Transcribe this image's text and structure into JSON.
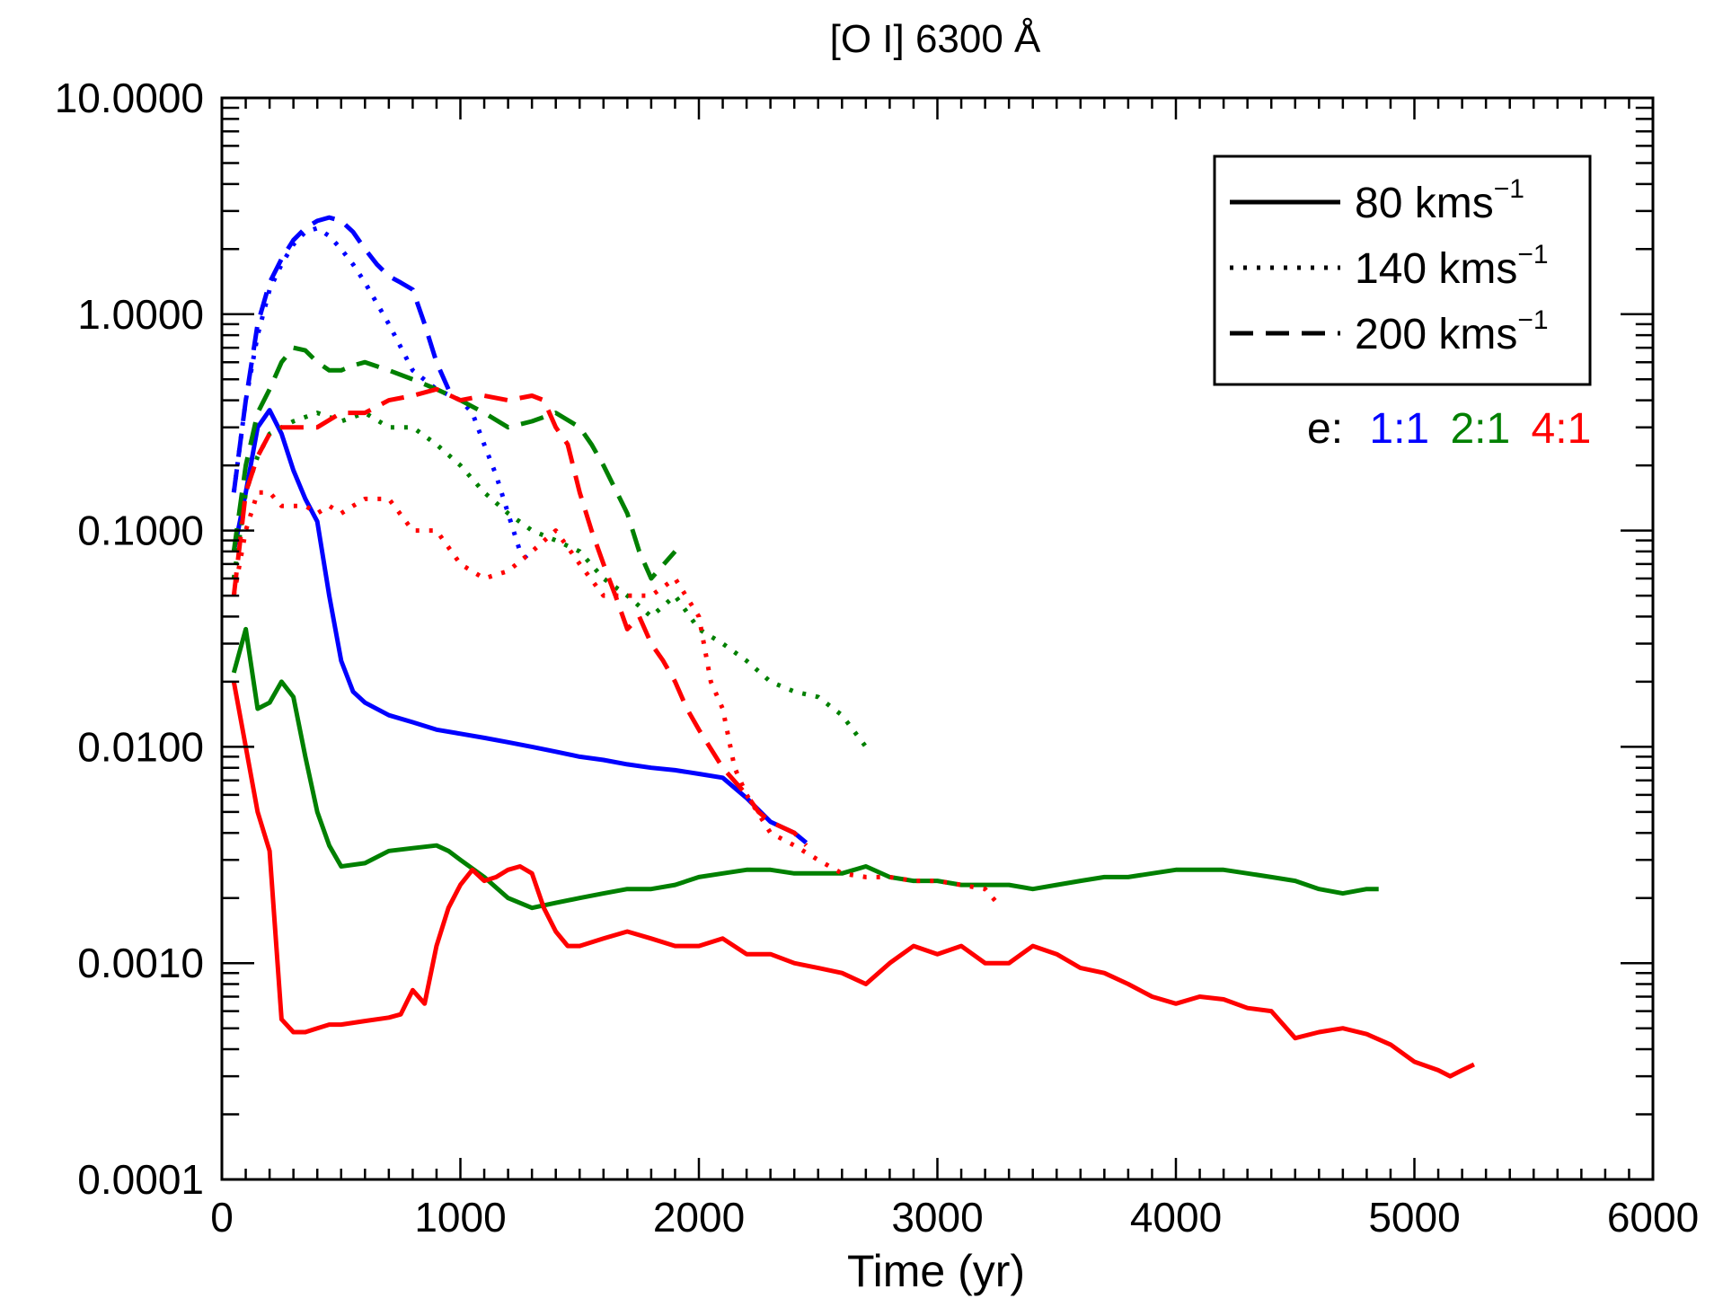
{
  "chart_data": {
    "type": "line",
    "title": "[O I] 6300 Å",
    "xlabel": "Time (yr)",
    "ylabel": "",
    "xlim": [
      0,
      6000
    ],
    "ylim": [
      0.0001,
      10
    ],
    "yscale": "log",
    "x_ticks": [
      0,
      1000,
      2000,
      3000,
      4000,
      5000,
      6000
    ],
    "x_tick_labels": [
      "0",
      "1000",
      "2000",
      "3000",
      "4000",
      "5000",
      "6000"
    ],
    "y_ticks": [
      0.0001,
      0.001,
      0.01,
      0.1,
      1,
      10
    ],
    "y_tick_labels": [
      "0.0001",
      "0.0010",
      "0.0100",
      "0.1000",
      "1.0000",
      "10.0000"
    ],
    "grid": false,
    "legend": {
      "position": "top-right",
      "items": [
        {
          "style": "solid",
          "text": "80 kms",
          "sup": "−1"
        },
        {
          "style": "dotted",
          "text": "140 kms",
          "sup": "−1"
        },
        {
          "style": "dashed",
          "text": "200 kms",
          "sup": "−1"
        }
      ]
    },
    "ecc_legend": {
      "prefix": "e:",
      "items": [
        {
          "text": "1:1",
          "color": "#0000ff"
        },
        {
          "text": "2:1",
          "color": "#008000"
        },
        {
          "text": "4:1",
          "color": "#ff0000"
        }
      ]
    },
    "series": [
      {
        "e": "1:1",
        "style": "solid",
        "color": "#0000ff",
        "x": [
          50,
          100,
          150,
          200,
          250,
          300,
          350,
          400,
          450,
          500,
          550,
          600,
          700,
          800,
          900,
          1000,
          1100,
          1200,
          1300,
          1400,
          1500,
          1600,
          1700,
          1800,
          1900,
          2000,
          2100,
          2200,
          2300,
          2400,
          2450
        ],
        "y": [
          0.08,
          0.15,
          0.3,
          0.36,
          0.28,
          0.19,
          0.14,
          0.11,
          0.05,
          0.025,
          0.018,
          0.016,
          0.014,
          0.013,
          0.012,
          0.0115,
          0.011,
          0.0105,
          0.01,
          0.0095,
          0.009,
          0.0087,
          0.0083,
          0.008,
          0.0078,
          0.0075,
          0.0072,
          0.0058,
          0.0045,
          0.004,
          0.0036
        ]
      },
      {
        "e": "2:1",
        "style": "solid",
        "color": "#008000",
        "x": [
          50,
          100,
          150,
          200,
          250,
          300,
          350,
          400,
          450,
          500,
          600,
          700,
          800,
          900,
          950,
          1000,
          1100,
          1200,
          1300,
          1400,
          1500,
          1600,
          1700,
          1800,
          1900,
          2000,
          2100,
          2200,
          2300,
          2400,
          2500,
          2600,
          2700,
          2800,
          2900,
          3000,
          3100,
          3200,
          3300,
          3400,
          3500,
          3600,
          3700,
          3800,
          3900,
          4000,
          4100,
          4200,
          4300,
          4400,
          4500,
          4600,
          4700,
          4800,
          4850
        ],
        "y": [
          0.022,
          0.035,
          0.015,
          0.016,
          0.02,
          0.017,
          0.009,
          0.005,
          0.0035,
          0.0028,
          0.0029,
          0.0033,
          0.0034,
          0.0035,
          0.0033,
          0.003,
          0.0025,
          0.002,
          0.0018,
          0.0019,
          0.002,
          0.0021,
          0.0022,
          0.0022,
          0.0023,
          0.0025,
          0.0026,
          0.0027,
          0.0027,
          0.0026,
          0.0026,
          0.0026,
          0.0028,
          0.0025,
          0.0024,
          0.0024,
          0.0023,
          0.0023,
          0.0023,
          0.0022,
          0.0023,
          0.0024,
          0.0025,
          0.0025,
          0.0026,
          0.0027,
          0.0027,
          0.0027,
          0.0026,
          0.0025,
          0.0024,
          0.0022,
          0.0021,
          0.0022,
          0.0022
        ]
      },
      {
        "e": "4:1",
        "style": "solid",
        "color": "#ff0000",
        "x": [
          50,
          100,
          150,
          200,
          250,
          300,
          350,
          400,
          450,
          500,
          550,
          600,
          700,
          750,
          800,
          850,
          900,
          950,
          1000,
          1050,
          1100,
          1150,
          1200,
          1250,
          1300,
          1350,
          1400,
          1450,
          1500,
          1600,
          1700,
          1800,
          1900,
          2000,
          2100,
          2200,
          2300,
          2400,
          2500,
          2600,
          2700,
          2800,
          2900,
          3000,
          3100,
          3200,
          3300,
          3400,
          3500,
          3600,
          3700,
          3800,
          3900,
          4000,
          4100,
          4200,
          4300,
          4400,
          4500,
          4600,
          4700,
          4800,
          4900,
          5000,
          5100,
          5150,
          5200,
          5250
        ],
        "y": [
          0.02,
          0.01,
          0.005,
          0.0033,
          0.00055,
          0.00048,
          0.00048,
          0.0005,
          0.00052,
          0.00052,
          0.00053,
          0.00054,
          0.00056,
          0.00058,
          0.00075,
          0.00065,
          0.0012,
          0.0018,
          0.0023,
          0.0027,
          0.0024,
          0.0025,
          0.0027,
          0.0028,
          0.0026,
          0.0018,
          0.0014,
          0.0012,
          0.0012,
          0.0013,
          0.0014,
          0.0013,
          0.0012,
          0.0012,
          0.0013,
          0.0011,
          0.0011,
          0.001,
          0.00095,
          0.0009,
          0.0008,
          0.001,
          0.0012,
          0.0011,
          0.0012,
          0.001,
          0.001,
          0.0012,
          0.0011,
          0.00095,
          0.0009,
          0.0008,
          0.0007,
          0.00065,
          0.0007,
          0.00068,
          0.00062,
          0.0006,
          0.00045,
          0.00048,
          0.0005,
          0.00047,
          0.00042,
          0.00035,
          0.00032,
          0.0003,
          0.00032,
          0.00034
        ]
      },
      {
        "e": "1:1",
        "style": "dotted",
        "color": "#0000ff",
        "x": [
          50,
          100,
          150,
          200,
          250,
          300,
          350,
          400,
          450,
          500,
          550,
          600,
          700,
          800,
          900,
          1000,
          1050,
          1100,
          1150,
          1200,
          1250,
          1300
        ],
        "y": [
          0.15,
          0.4,
          0.8,
          1.3,
          1.7,
          2.1,
          2.4,
          2.5,
          2.3,
          2.0,
          1.7,
          1.4,
          0.9,
          0.55,
          0.45,
          0.4,
          0.35,
          0.25,
          0.18,
          0.12,
          0.08,
          0.07
        ]
      },
      {
        "e": "2:1",
        "style": "dotted",
        "color": "#008000",
        "x": [
          50,
          100,
          150,
          200,
          250,
          300,
          400,
          500,
          600,
          700,
          800,
          900,
          1000,
          1100,
          1200,
          1300,
          1400,
          1500,
          1600,
          1700,
          1800,
          1900,
          2000,
          2100,
          2200,
          2300,
          2400,
          2500,
          2600,
          2700
        ],
        "y": [
          0.06,
          0.15,
          0.22,
          0.28,
          0.3,
          0.32,
          0.35,
          0.32,
          0.35,
          0.3,
          0.3,
          0.25,
          0.2,
          0.15,
          0.12,
          0.1,
          0.09,
          0.08,
          0.06,
          0.05,
          0.04,
          0.05,
          0.035,
          0.03,
          0.025,
          0.02,
          0.018,
          0.017,
          0.014,
          0.01
        ]
      },
      {
        "e": "4:1",
        "style": "dotted",
        "color": "#ff0000",
        "x": [
          50,
          100,
          150,
          200,
          250,
          300,
          350,
          400,
          450,
          500,
          550,
          600,
          700,
          800,
          900,
          1000,
          1100,
          1200,
          1300,
          1400,
          1500,
          1600,
          1700,
          1800,
          1900,
          2000,
          2050,
          2100,
          2150,
          2200,
          2300,
          2400,
          2500,
          2600,
          2700,
          2800,
          2900,
          3000,
          3100,
          3200,
          3250
        ],
        "y": [
          0.05,
          0.1,
          0.15,
          0.15,
          0.13,
          0.13,
          0.13,
          0.12,
          0.13,
          0.12,
          0.13,
          0.14,
          0.14,
          0.1,
          0.1,
          0.07,
          0.06,
          0.065,
          0.08,
          0.1,
          0.07,
          0.05,
          0.05,
          0.05,
          0.06,
          0.04,
          0.02,
          0.015,
          0.008,
          0.006,
          0.004,
          0.0035,
          0.003,
          0.0026,
          0.0025,
          0.0025,
          0.0024,
          0.0024,
          0.0023,
          0.0022,
          0.0019
        ]
      },
      {
        "e": "1:1",
        "style": "dashed",
        "color": "#0000ff",
        "x": [
          50,
          100,
          150,
          200,
          250,
          300,
          350,
          400,
          450,
          500,
          550,
          600,
          650,
          700,
          750,
          800,
          850,
          900,
          950
        ],
        "y": [
          0.15,
          0.4,
          0.9,
          1.4,
          1.8,
          2.2,
          2.5,
          2.7,
          2.8,
          2.7,
          2.4,
          2.0,
          1.7,
          1.5,
          1.4,
          1.3,
          0.9,
          0.6,
          0.45
        ]
      },
      {
        "e": "2:1",
        "style": "dashed",
        "color": "#008000",
        "x": [
          50,
          100,
          150,
          200,
          250,
          300,
          350,
          400,
          450,
          500,
          550,
          600,
          700,
          800,
          900,
          1000,
          1100,
          1200,
          1300,
          1400,
          1500,
          1550,
          1600,
          1700,
          1750,
          1800,
          1900
        ],
        "y": [
          0.08,
          0.2,
          0.35,
          0.45,
          0.6,
          0.7,
          0.68,
          0.6,
          0.55,
          0.55,
          0.58,
          0.6,
          0.55,
          0.5,
          0.45,
          0.4,
          0.35,
          0.3,
          0.32,
          0.35,
          0.3,
          0.25,
          0.2,
          0.12,
          0.08,
          0.06,
          0.08
        ]
      },
      {
        "e": "4:1",
        "style": "dashed",
        "color": "#ff0000",
        "x": [
          50,
          100,
          150,
          200,
          250,
          300,
          400,
          500,
          600,
          700,
          800,
          900,
          1000,
          1100,
          1200,
          1300,
          1350,
          1400,
          1450,
          1500,
          1550,
          1600,
          1650,
          1700,
          1750,
          1800,
          1850,
          1900,
          1950,
          2000,
          2100,
          2200,
          2250,
          2300,
          2400,
          2450
        ],
        "y": [
          0.05,
          0.15,
          0.22,
          0.28,
          0.3,
          0.3,
          0.3,
          0.35,
          0.35,
          0.4,
          0.42,
          0.45,
          0.4,
          0.42,
          0.4,
          0.42,
          0.4,
          0.3,
          0.25,
          0.15,
          0.1,
          0.07,
          0.05,
          0.035,
          0.04,
          0.03,
          0.025,
          0.02,
          0.015,
          0.012,
          0.008,
          0.006,
          0.005,
          0.0045,
          0.004,
          0.0035
        ]
      }
    ]
  }
}
